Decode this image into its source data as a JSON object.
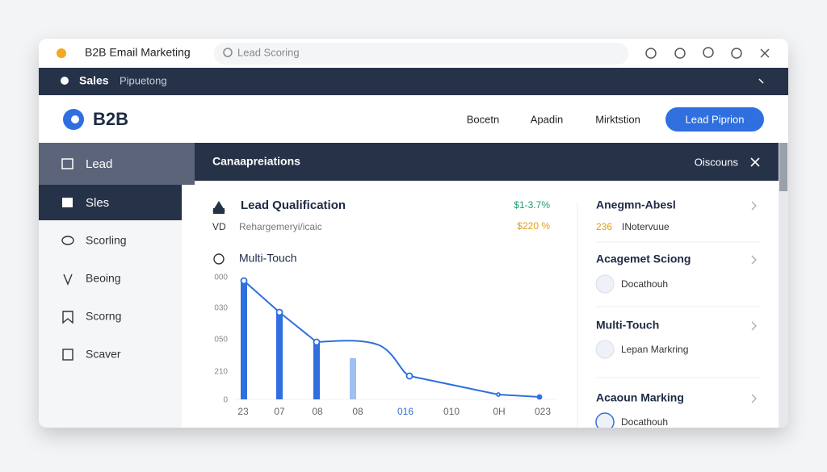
{
  "titlebar": {
    "app_title": "B2B Email Marketing",
    "search": "Lead Scoring"
  },
  "topnav": {
    "primary": "Sales",
    "secondary": "Pipuetong"
  },
  "header": {
    "logo": "B2B",
    "links": [
      "Bocetn",
      "Apadin",
      "Mirktstion"
    ],
    "button": "Lead Piprion"
  },
  "sidebar": {
    "items": [
      "Lead",
      "Sles",
      "Scorling",
      "Beoing",
      "Scorng",
      "Scaver"
    ]
  },
  "content_bar": {
    "title": "Canaapreiations",
    "action": "Oiscouns"
  },
  "card": {
    "title": "Lead Qualification",
    "title_metric": "$1-3.7%",
    "row_label": "VD",
    "row_text": "Rehargemeryi/icaic",
    "row_metric": "$220 %",
    "chart_title": "Multi-Touch",
    "y_labels": [
      "000",
      "030",
      "050",
      "210",
      "0"
    ],
    "x_labels": [
      "23",
      "07",
      "08",
      "08",
      "016",
      "010",
      "0H",
      "023"
    ]
  },
  "right_panel": {
    "items": [
      {
        "title": "Anegmn-Abesl",
        "badge": "236",
        "text": "INotervuue"
      },
      {
        "title": "Acagemet Sciong",
        "text": "Docathouh"
      },
      {
        "title": "Multi-Touch",
        "text": "Lepan Markring"
      },
      {
        "title": "Acaoun Marking",
        "text": "Docathouh"
      }
    ]
  }
}
